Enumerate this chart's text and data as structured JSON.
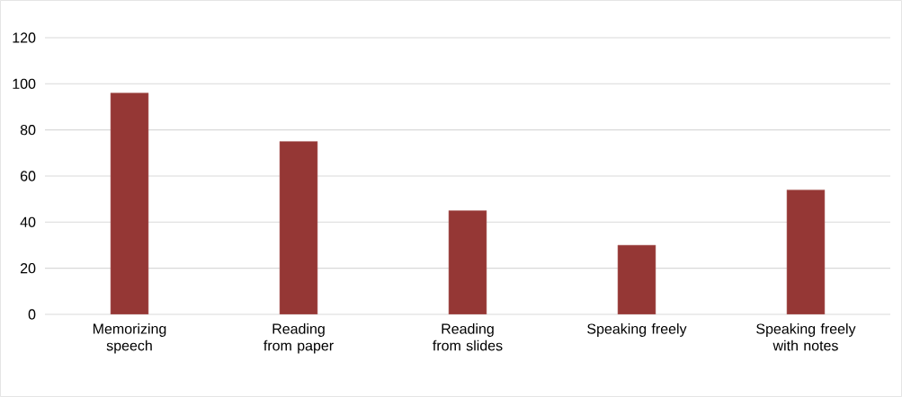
{
  "chart_data": {
    "type": "bar",
    "categories": [
      "Memorizing speech",
      "Reading from paper",
      "Reading from slides",
      "Speaking freely",
      "Speaking freely with notes"
    ],
    "values": [
      96,
      75,
      45,
      30,
      54
    ],
    "color": "#953735",
    "ylim": [
      0,
      120
    ],
    "yticks": [
      0,
      20,
      40,
      60,
      80,
      100,
      120
    ],
    "grid": "y"
  }
}
